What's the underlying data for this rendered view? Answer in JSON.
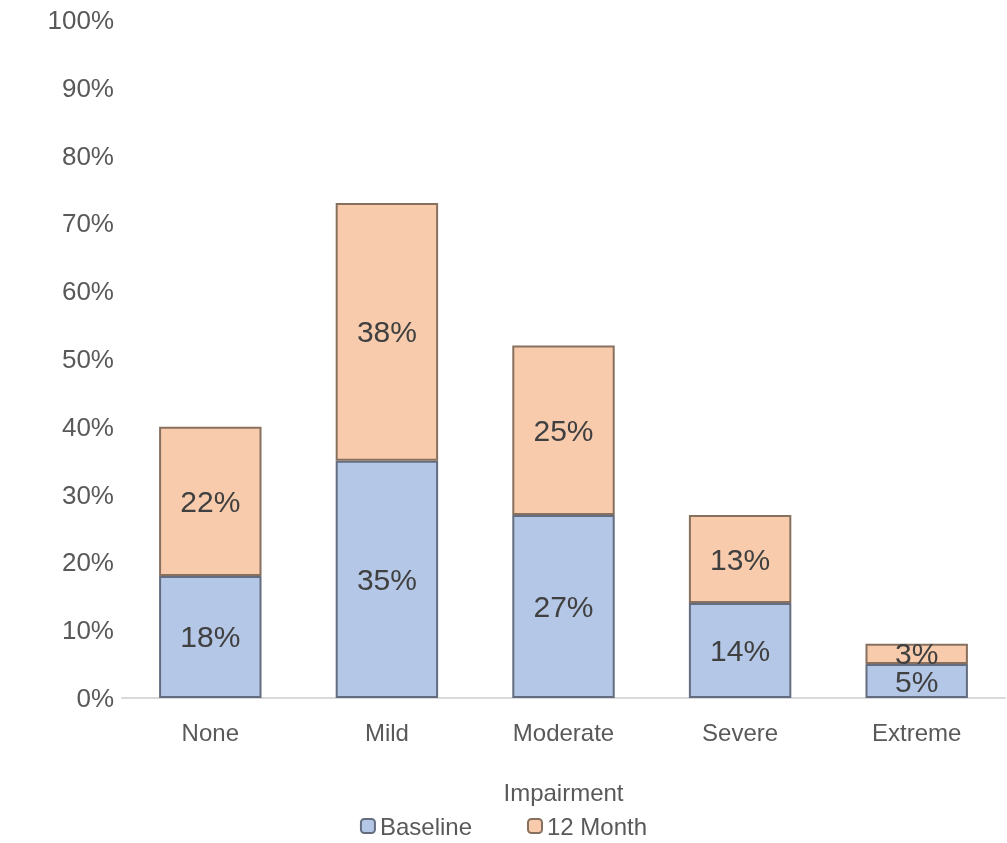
{
  "chart_data": {
    "type": "bar",
    "stacked": true,
    "xlabel": "Impairment",
    "categories": [
      "None",
      "Mild",
      "Moderate",
      "Severe",
      "Extreme"
    ],
    "series": [
      {
        "name": "Baseline",
        "color": "#b4c7e7",
        "values": [
          18,
          35,
          27,
          14,
          5
        ],
        "value_labels": [
          "18%",
          "35%",
          "27%",
          "14%",
          "5%"
        ]
      },
      {
        "name": "12 Month",
        "color": "#f8cbad",
        "values": [
          22,
          38,
          25,
          13,
          3
        ],
        "value_labels": [
          "22%",
          "38%",
          "25%",
          "13%",
          "3%"
        ]
      }
    ],
    "ylim": [
      0,
      100
    ],
    "yticks": [
      {
        "value": 0,
        "label": "0%"
      },
      {
        "value": 10,
        "label": "10%"
      },
      {
        "value": 20,
        "label": "20%"
      },
      {
        "value": 30,
        "label": "30%"
      },
      {
        "value": 40,
        "label": "40%"
      },
      {
        "value": 50,
        "label": "50%"
      },
      {
        "value": 60,
        "label": "60%"
      },
      {
        "value": 70,
        "label": "70%"
      },
      {
        "value": 80,
        "label": "80%"
      },
      {
        "value": 90,
        "label": "90%"
      },
      {
        "value": 100,
        "label": "100%"
      }
    ],
    "grid": false,
    "legend": "bottom"
  }
}
